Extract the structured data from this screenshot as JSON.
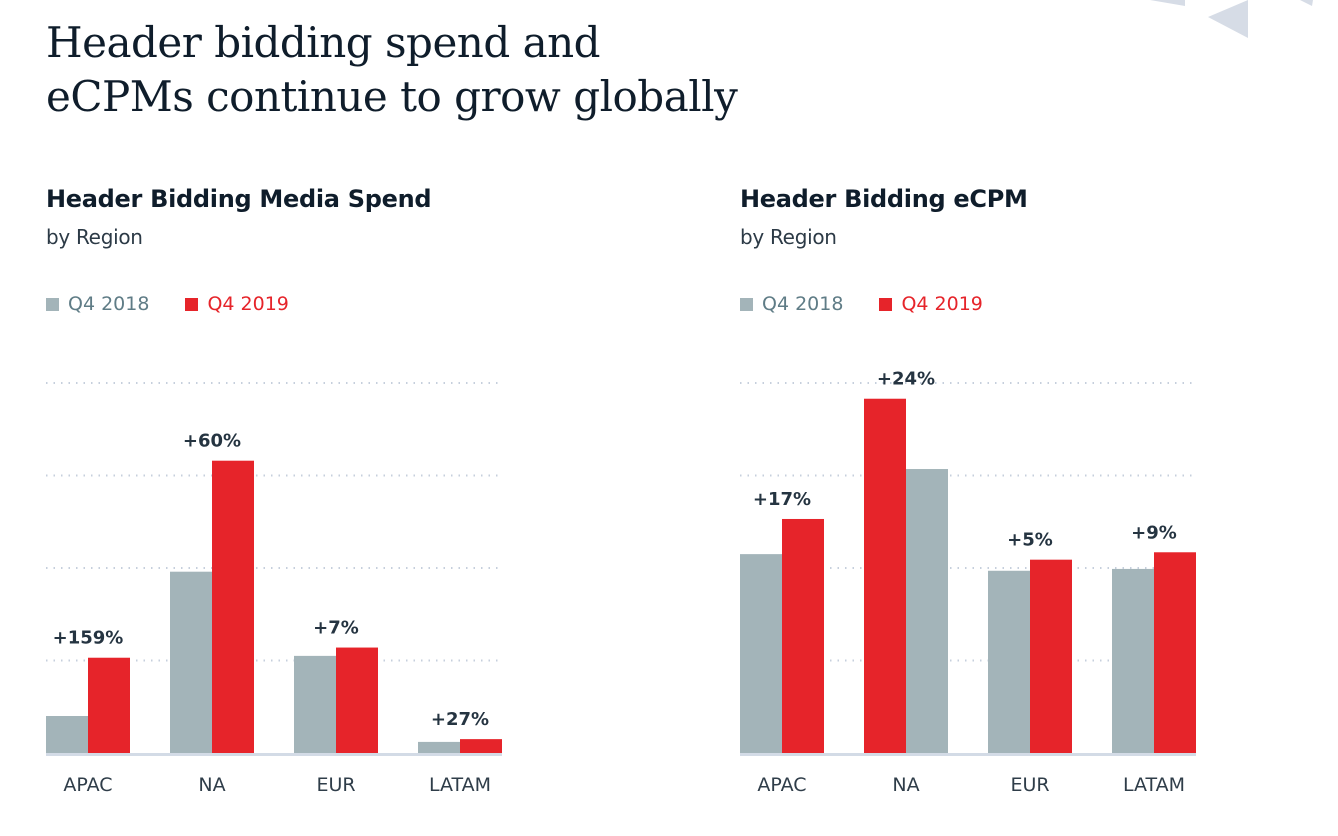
{
  "page": {
    "title": "Header bidding spend and\neCPMs continue to grow globally",
    "decoration": "triangle-shapes"
  },
  "colors": {
    "q4_2018": "#a3b4b9",
    "q4_2019": "#e6242a",
    "legend_text_2018": "#5f7c86",
    "legend_text_2019": "#e6242a",
    "decor": "#d6dce6"
  },
  "chart_data": [
    {
      "id": "media-spend",
      "type": "bar",
      "title": "Header Bidding Media Spend",
      "subtitle": "by Region",
      "xlabel": "",
      "ylabel": "",
      "ylim": [
        0,
        4
      ],
      "y_units": "gridline units (no axis scale shown)",
      "grid": true,
      "legend": "top-left",
      "categories": [
        "APAC",
        "NA",
        "EUR",
        "LATAM"
      ],
      "series": [
        {
          "name": "Q4 2018",
          "values": [
            0.4,
            1.96,
            1.05,
            0.12
          ]
        },
        {
          "name": "Q4 2019",
          "values": [
            1.03,
            3.16,
            1.14,
            0.15
          ]
        }
      ],
      "bar_order": [
        [
          "Q4 2018",
          "Q4 2019"
        ],
        [
          "Q4 2018",
          "Q4 2019"
        ],
        [
          "Q4 2018",
          "Q4 2019"
        ],
        [
          "Q4 2018",
          "Q4 2019"
        ]
      ],
      "annotations": [
        "+159%",
        "+60%",
        "+7%",
        "+27%"
      ]
    },
    {
      "id": "ecpm",
      "type": "bar",
      "title": "Header Bidding eCPM",
      "subtitle": "by Region",
      "xlabel": "",
      "ylabel": "",
      "ylim": [
        0,
        4
      ],
      "y_units": "gridline units (no axis scale shown)",
      "grid": true,
      "legend": "top-left",
      "categories": [
        "APAC",
        "NA",
        "EUR",
        "LATAM"
      ],
      "series": [
        {
          "name": "Q4 2018",
          "values": [
            2.15,
            3.07,
            1.97,
            1.99
          ]
        },
        {
          "name": "Q4 2019",
          "values": [
            2.53,
            3.83,
            2.09,
            2.17
          ]
        }
      ],
      "bar_order": [
        [
          "Q4 2018",
          "Q4 2019"
        ],
        [
          "Q4 2019",
          "Q4 2018"
        ],
        [
          "Q4 2018",
          "Q4 2019"
        ],
        [
          "Q4 2018",
          "Q4 2019"
        ]
      ],
      "annotations": [
        "+17%",
        "+24%",
        "+5%",
        "+9%"
      ]
    }
  ]
}
